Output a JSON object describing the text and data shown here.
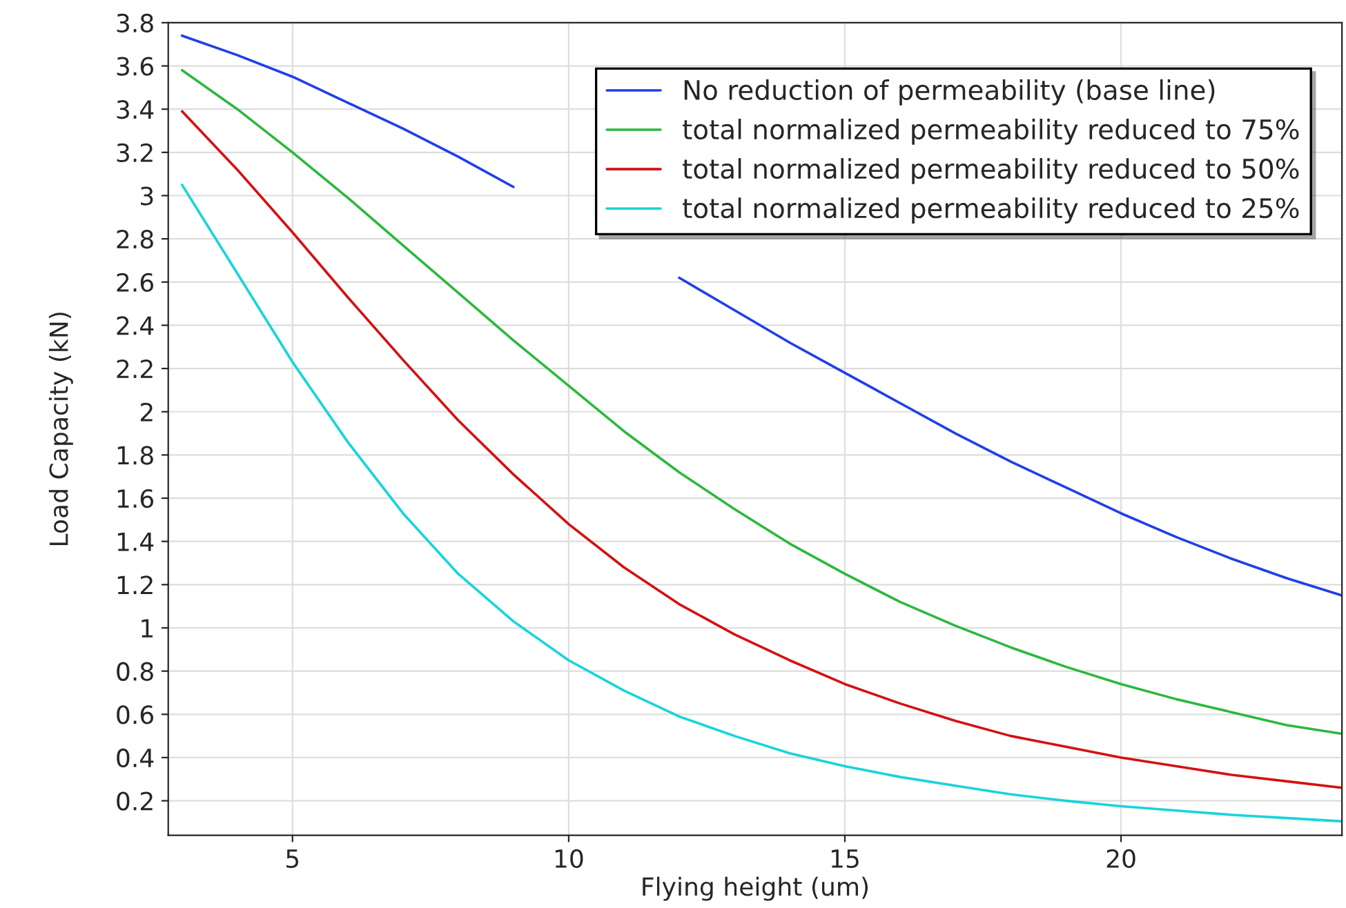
{
  "chart_data": {
    "type": "line",
    "xlabel": "Flying height (um)",
    "ylabel": "Load Capacity (kN)",
    "x": [
      3,
      4,
      5,
      6,
      7,
      8,
      9,
      10,
      11,
      12,
      13,
      14,
      15,
      16,
      17,
      18,
      19,
      20,
      21,
      22,
      23,
      24
    ],
    "xlim": [
      2.75,
      24
    ],
    "xticks": [
      5,
      10,
      15,
      20
    ],
    "ylim": [
      0.04,
      3.8
    ],
    "yticks": [
      0.2,
      0.4,
      0.6,
      0.8,
      1,
      1.2,
      1.4,
      1.6,
      1.8,
      2,
      2.2,
      2.4,
      2.6,
      2.8,
      3,
      3.2,
      3.4,
      3.6,
      3.8
    ],
    "grid": true,
    "legend": "top right",
    "marker": "none",
    "line_style": "solid",
    "series": [
      {
        "name": "No reduction of permeability (base line)",
        "color": "#1f3fe8",
        "values": [
          3.74,
          3.65,
          3.55,
          3.43,
          3.31,
          3.18,
          3.04,
          null,
          null,
          2.62,
          2.47,
          2.32,
          2.18,
          2.04,
          1.9,
          1.77,
          1.65,
          1.53,
          1.42,
          1.32,
          1.23,
          1.15
        ]
      },
      {
        "name": "total normalized permeability reduced to 75%",
        "color": "#2db83d",
        "values": [
          3.58,
          3.4,
          3.2,
          2.99,
          2.77,
          2.55,
          2.33,
          2.12,
          1.91,
          1.72,
          1.55,
          1.39,
          1.25,
          1.12,
          1.01,
          0.91,
          0.82,
          0.74,
          0.67,
          0.61,
          0.55,
          0.51
        ]
      },
      {
        "name": "total normalized permeability reduced to 50%",
        "color": "#d41111",
        "values": [
          3.39,
          3.12,
          2.83,
          2.53,
          2.24,
          1.96,
          1.71,
          1.48,
          1.28,
          1.11,
          0.97,
          0.85,
          0.74,
          0.65,
          0.57,
          0.5,
          0.45,
          0.4,
          0.36,
          0.32,
          0.29,
          0.26
        ]
      },
      {
        "name": "total normalized permeability reduced to 25%",
        "color": "#17d4dc",
        "values": [
          3.05,
          2.64,
          2.23,
          1.86,
          1.53,
          1.25,
          1.03,
          0.85,
          0.71,
          0.59,
          0.5,
          0.42,
          0.36,
          0.31,
          0.27,
          0.23,
          0.2,
          0.175,
          0.155,
          0.135,
          0.12,
          0.105
        ]
      }
    ]
  }
}
